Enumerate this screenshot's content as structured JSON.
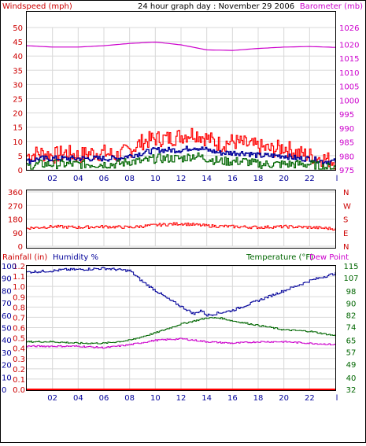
{
  "header": {
    "title": "24 hour graph day : November 29 2006",
    "left_label": "Windspeed (mph)",
    "right_label": "Barometer (mb)"
  },
  "colors": {
    "red": "#ff0000",
    "dark_red": "#cc0000",
    "blue": "#000099",
    "green": "#006600",
    "magenta": "#cc00cc",
    "grid": "#d8d8d8",
    "frame": "#000000"
  },
  "x_ticks": [
    "02",
    "04",
    "06",
    "08",
    "10",
    "12",
    "14",
    "16",
    "18",
    "20",
    "22"
  ],
  "x_end_tick": "l",
  "chart_data": [
    {
      "type": "line",
      "name": "wind-barometer",
      "title": "24 hour graph day : November 29 2006",
      "y_left": {
        "label": "Windspeed (mph)",
        "range": [
          0,
          50
        ],
        "ticks": [
          0,
          5,
          10,
          15,
          20,
          25,
          30,
          35,
          40,
          45,
          50
        ]
      },
      "y_right": {
        "label": "Barometer (mb)",
        "range": [
          975,
          1026
        ],
        "ticks": [
          975,
          980,
          985,
          990,
          995,
          1000,
          1005,
          1010,
          1015,
          1020,
          1026
        ]
      },
      "x_range_hours": [
        0,
        24
      ],
      "series": [
        {
          "color": "red",
          "axis": "left",
          "x": [
            0,
            1,
            2,
            3,
            4,
            5,
            6,
            7,
            8,
            9,
            10,
            11,
            12,
            13,
            14,
            15,
            16,
            17,
            18,
            19,
            20,
            21,
            22,
            23,
            24
          ],
          "values": [
            5,
            6,
            5,
            6,
            5,
            6,
            6,
            5,
            7,
            10,
            11,
            11,
            12,
            13,
            11,
            9,
            10,
            9,
            8,
            7,
            8,
            6,
            5,
            4,
            3
          ]
        },
        {
          "color": "blue",
          "axis": "left",
          "x": [
            0,
            1,
            2,
            3,
            4,
            5,
            6,
            7,
            8,
            9,
            10,
            11,
            12,
            13,
            14,
            15,
            16,
            17,
            18,
            19,
            20,
            21,
            22,
            23,
            24
          ],
          "values": [
            3,
            4,
            4,
            4,
            4,
            4,
            4,
            4,
            5,
            6,
            7,
            7,
            7,
            8,
            7,
            6,
            6,
            6,
            5,
            5,
            5,
            4,
            4,
            3,
            3
          ]
        },
        {
          "color": "green",
          "axis": "left",
          "x": [
            0,
            1,
            2,
            3,
            4,
            5,
            6,
            7,
            8,
            9,
            10,
            11,
            12,
            13,
            14,
            15,
            16,
            17,
            18,
            19,
            20,
            21,
            22,
            23,
            24
          ],
          "values": [
            1,
            2,
            2,
            2,
            2,
            2,
            2,
            2,
            3,
            3,
            4,
            4,
            4,
            5,
            4,
            3,
            3,
            3,
            2,
            2,
            2,
            2,
            2,
            1,
            1
          ]
        },
        {
          "color": "magenta",
          "axis": "right",
          "x": [
            0,
            2,
            4,
            6,
            8,
            10,
            12,
            14,
            16,
            18,
            20,
            22,
            24
          ],
          "values": [
            1019.5,
            1019.0,
            1019.0,
            1019.5,
            1020.3,
            1020.8,
            1019.8,
            1018.0,
            1017.8,
            1018.5,
            1019.0,
            1019.2,
            1018.9
          ]
        }
      ]
    },
    {
      "type": "line",
      "name": "wind-direction",
      "y_left": {
        "range": [
          0,
          360
        ],
        "ticks": [
          0,
          90,
          180,
          270,
          360
        ]
      },
      "y_right_labels": [
        "N",
        "W",
        "S",
        "E",
        "N"
      ],
      "x_range_hours": [
        0,
        24
      ],
      "series": [
        {
          "color": "red",
          "x": [
            0,
            2,
            4,
            6,
            8,
            10,
            12,
            14,
            16,
            18,
            20,
            22,
            24
          ],
          "values": [
            120,
            130,
            125,
            130,
            125,
            140,
            150,
            135,
            130,
            125,
            130,
            125,
            115
          ]
        }
      ]
    },
    {
      "type": "line",
      "name": "rain-humidity-temp",
      "labels": {
        "rainfall": "Rainfall (in)",
        "humidity": "Humidity %",
        "temperature": "Temperature (°F)",
        "dew_point": "Dew Point"
      },
      "y_rain": {
        "range": [
          0,
          1.2
        ],
        "ticks": [
          0.0,
          0.1,
          0.2,
          0.3,
          0.4,
          0.5,
          0.6,
          0.7,
          0.8,
          0.9,
          1.0,
          1.1,
          1.2
        ]
      },
      "y_humidity": {
        "range": [
          0,
          100
        ],
        "ticks": [
          0,
          10,
          20,
          30,
          40,
          50,
          60,
          70,
          80,
          90,
          100
        ]
      },
      "y_temp": {
        "range": [
          32,
          115
        ],
        "ticks": [
          32,
          40,
          49,
          57,
          65,
          74,
          82,
          90,
          98,
          107,
          115
        ]
      },
      "x_range_hours": [
        0,
        24
      ],
      "series": [
        {
          "color": "blue",
          "axis": "humidity",
          "x": [
            0,
            2,
            3,
            4,
            6,
            8,
            9,
            10,
            11,
            12,
            13,
            13.5,
            14,
            15,
            16,
            18,
            20,
            22,
            24
          ],
          "values": [
            95,
            96,
            97,
            97,
            98,
            96,
            87,
            80,
            73,
            67,
            61,
            64,
            60,
            62,
            64,
            72,
            80,
            88,
            94
          ]
        },
        {
          "color": "green",
          "axis": "temp",
          "x": [
            0,
            2,
            4,
            6,
            8,
            10,
            12,
            14,
            15,
            16,
            18,
            20,
            22,
            24
          ],
          "values": [
            64,
            64,
            63,
            63,
            65,
            70,
            76,
            80,
            80,
            78,
            75,
            72,
            71,
            68
          ]
        },
        {
          "color": "magenta",
          "axis": "temp",
          "x": [
            0,
            2,
            4,
            6,
            8,
            10,
            12,
            14,
            16,
            18,
            20,
            22,
            24
          ],
          "values": [
            61,
            61,
            61,
            60,
            62,
            65,
            66,
            64,
            63,
            64,
            64,
            63,
            62
          ]
        },
        {
          "color": "red",
          "axis": "rain",
          "x": [
            0,
            24
          ],
          "values": [
            0,
            0
          ]
        }
      ]
    }
  ]
}
